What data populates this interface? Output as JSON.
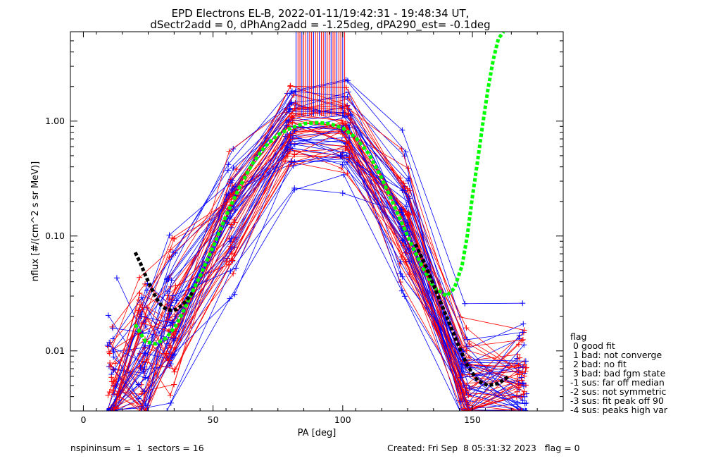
{
  "chart_data": {
    "type": "line",
    "title": "EPD Electrons EL-B, 2022-01-11/19:42:31 - 19:48:34 UT,",
    "subtitle": "dSectr2add = 0, dPhAng2add = -1.25deg, dPA290_est=  -0.1deg",
    "xlabel": "PA [deg]",
    "ylabel": "nflux [#/(cm^2 s sr MeV)]",
    "xlim": [
      -5,
      185
    ],
    "ylim": [
      0.003,
      6
    ],
    "y_scale": "log",
    "x_ticks": [
      0,
      50,
      100,
      150
    ],
    "x_tick_labels": [
      "0",
      "50",
      "100",
      "150"
    ],
    "y_ticks": [
      0.01,
      0.1,
      1.0
    ],
    "y_tick_labels": [
      "0.01",
      "0.10",
      "1.00"
    ],
    "grid": false,
    "series_colors": {
      "red": "#ff0000",
      "blue": "#0000ff",
      "green_fit": "#00ff00",
      "black_fit": "#000000"
    },
    "fit_curves": [
      {
        "color": "#00ff00",
        "x": [
          20,
          24,
          28,
          32,
          36,
          40,
          45,
          50,
          55,
          60,
          65,
          70,
          75,
          80,
          85,
          90,
          95,
          100,
          105,
          110,
          115,
          120,
          125,
          130,
          135,
          140,
          143,
          146,
          148,
          150,
          152,
          154,
          156,
          158,
          160,
          162
        ],
        "y": [
          0.017,
          0.012,
          0.0115,
          0.013,
          0.017,
          0.026,
          0.045,
          0.08,
          0.15,
          0.26,
          0.42,
          0.6,
          0.76,
          0.87,
          0.95,
          0.97,
          0.95,
          0.87,
          0.72,
          0.52,
          0.32,
          0.18,
          0.1,
          0.058,
          0.036,
          0.03,
          0.035,
          0.055,
          0.1,
          0.22,
          0.45,
          0.95,
          1.9,
          3.4,
          5.2,
          6.0
        ]
      },
      {
        "color": "#000000",
        "x": [
          20,
          22,
          24,
          26,
          28,
          30,
          32,
          34,
          36,
          38,
          40,
          42
        ],
        "y": [
          0.072,
          0.058,
          0.045,
          0.036,
          0.029,
          0.025,
          0.023,
          0.0225,
          0.023,
          0.025,
          0.028,
          0.032
        ]
      },
      {
        "color": "#000000",
        "x": [
          128,
          132,
          136,
          140,
          144,
          148,
          152,
          156,
          160,
          164
        ],
        "y": [
          0.085,
          0.055,
          0.033,
          0.02,
          0.012,
          0.0075,
          0.0055,
          0.005,
          0.0052,
          0.006
        ]
      }
    ]
  },
  "legend": {
    "title": "flag",
    "items": [
      " 0 good fit",
      " 1 bad: not converge",
      " 2 bad: no fit",
      " 3 bad: bad fgm state",
      "-1 sus: far off median",
      "-2 sus: not symmetric",
      "-3 sus: fit peak off 90",
      "-4 sus: peaks high var"
    ]
  },
  "footer": {
    "left": "nspininsum =  1  sectors = 16",
    "right": "Created: Fri Sep  8 05:31:32 2023   flag = 0"
  }
}
